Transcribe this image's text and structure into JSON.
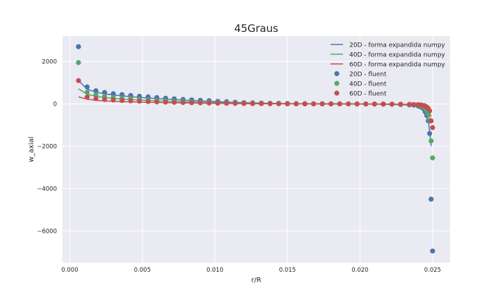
{
  "chart_data": {
    "type": "scatter",
    "title": "45Graus",
    "xlabel": "r/R",
    "ylabel": "w_axial",
    "xlim": [
      -0.0005,
      0.0262
    ],
    "ylim": [
      -7500,
      3200
    ],
    "xticks": [
      0.0,
      0.005,
      0.01,
      0.015,
      0.02,
      0.025
    ],
    "xtick_labels": [
      "0.000",
      "0.005",
      "0.010",
      "0.015",
      "0.020",
      "0.025"
    ],
    "yticks": [
      -6000,
      -4000,
      -2000,
      0,
      2000
    ],
    "ytick_labels": [
      "−6000",
      "−4000",
      "−2000",
      "0",
      "2000"
    ],
    "grid": true,
    "legend_position": "top-right",
    "colors": {
      "blue": "#4c72b0",
      "green": "#55a868",
      "red": "#c44e52",
      "background": "#eaeaf2"
    },
    "line_series": [
      {
        "name": "20D - forma expandida numpy",
        "color": "#4c72b0",
        "x": [
          0.0006,
          0.0012,
          0.0018,
          0.0024,
          0.003,
          0.0036,
          0.0042,
          0.0048,
          0.0054,
          0.006,
          0.0066,
          0.0072,
          0.0078,
          0.0084,
          0.009,
          0.0096,
          0.0102,
          0.0108,
          0.0114,
          0.012,
          0.0126,
          0.0132,
          0.0138,
          0.0144,
          0.015,
          0.0156,
          0.0162,
          0.0168,
          0.0174,
          0.018,
          0.0186,
          0.0192,
          0.0198,
          0.0204,
          0.021,
          0.0216,
          0.0222,
          0.0228,
          0.0234,
          0.024,
          0.0243,
          0.0245,
          0.0247,
          0.0248,
          0.0249
        ],
        "y": [
          1100,
          700,
          550,
          480,
          420,
          380,
          340,
          310,
          280,
          250,
          225,
          200,
          180,
          160,
          140,
          120,
          100,
          85,
          70,
          55,
          45,
          35,
          28,
          20,
          15,
          10,
          8,
          5,
          3,
          2,
          0,
          -2,
          -5,
          -8,
          -12,
          -18,
          -28,
          -40,
          -60,
          -110,
          -200,
          -400,
          -800,
          -1300,
          -2000
        ]
      },
      {
        "name": "40D - forma expandida numpy",
        "color": "#55a868",
        "x": [
          0.0006,
          0.0012,
          0.0018,
          0.0024,
          0.003,
          0.0036,
          0.0042,
          0.0048,
          0.0054,
          0.006,
          0.0066,
          0.0072,
          0.0078,
          0.0084,
          0.009,
          0.0096,
          0.0102,
          0.0108,
          0.0114,
          0.012,
          0.0126,
          0.0132,
          0.0138,
          0.0144,
          0.015,
          0.0156,
          0.0162,
          0.0168,
          0.0174,
          0.018,
          0.0186,
          0.0192,
          0.0198,
          0.0204,
          0.021,
          0.0216,
          0.0222,
          0.0228,
          0.0234,
          0.024,
          0.0243,
          0.0245,
          0.0247,
          0.0248,
          0.0249
        ],
        "y": [
          720,
          450,
          360,
          300,
          260,
          230,
          200,
          180,
          160,
          140,
          125,
          110,
          95,
          85,
          75,
          65,
          55,
          45,
          38,
          30,
          25,
          18,
          14,
          10,
          8,
          5,
          4,
          3,
          2,
          1,
          0,
          -1,
          -3,
          -5,
          -8,
          -12,
          -18,
          -26,
          -40,
          -70,
          -120,
          -230,
          -450,
          -650,
          -900
        ]
      },
      {
        "name": "60D - forma expandida numpy",
        "color": "#c44e52",
        "x": [
          0.0006,
          0.0012,
          0.0018,
          0.0024,
          0.003,
          0.0036,
          0.0042,
          0.0048,
          0.0054,
          0.006,
          0.0066,
          0.0072,
          0.0078,
          0.0084,
          0.009,
          0.0096,
          0.0102,
          0.0108,
          0.0114,
          0.012,
          0.0126,
          0.0132,
          0.0138,
          0.0144,
          0.015,
          0.0156,
          0.0162,
          0.0168,
          0.0174,
          0.018,
          0.0186,
          0.0192,
          0.0198,
          0.0204,
          0.021,
          0.0216,
          0.0222,
          0.0228,
          0.0234,
          0.024,
          0.0243,
          0.0245,
          0.0247,
          0.0248,
          0.0249
        ],
        "y": [
          330,
          220,
          170,
          140,
          120,
          105,
          95,
          85,
          75,
          65,
          58,
          50,
          44,
          38,
          33,
          28,
          23,
          19,
          15,
          12,
          10,
          7,
          5,
          4,
          3,
          2,
          1,
          1,
          0,
          0,
          0,
          -1,
          -2,
          -3,
          -5,
          -8,
          -12,
          -18,
          -28,
          -50,
          -80,
          -150,
          -280,
          -420,
          -600
        ]
      }
    ],
    "scatter_series": [
      {
        "name": "20D - fluent",
        "color": "#4c72b0",
        "x": [
          0.0006,
          0.0012,
          0.0018,
          0.0024,
          0.003,
          0.0036,
          0.0042,
          0.0048,
          0.0054,
          0.006,
          0.0066,
          0.0072,
          0.0078,
          0.0084,
          0.009,
          0.0096,
          0.0102,
          0.0108,
          0.0114,
          0.012,
          0.0126,
          0.0132,
          0.0138,
          0.0144,
          0.015,
          0.0156,
          0.0162,
          0.0168,
          0.0174,
          0.018,
          0.0186,
          0.0192,
          0.0198,
          0.0204,
          0.021,
          0.0216,
          0.0222,
          0.0228,
          0.0234,
          0.0237,
          0.024,
          0.0242,
          0.0244,
          0.0245,
          0.0246,
          0.0247,
          0.0248,
          0.0249,
          0.025
        ],
        "y": [
          2700,
          800,
          620,
          540,
          480,
          440,
          400,
          360,
          330,
          300,
          270,
          240,
          210,
          190,
          170,
          150,
          120,
          100,
          80,
          60,
          50,
          40,
          30,
          25,
          18,
          14,
          10,
          7,
          5,
          3,
          2,
          0,
          -3,
          -6,
          -10,
          -14,
          -20,
          -30,
          -45,
          -60,
          -100,
          -150,
          -250,
          -380,
          -550,
          -800,
          -1400,
          -4500,
          -6950
        ]
      },
      {
        "name": "40D - fluent",
        "color": "#55a868",
        "x": [
          0.0006,
          0.0012,
          0.0018,
          0.0024,
          0.003,
          0.0036,
          0.0042,
          0.0048,
          0.0054,
          0.006,
          0.0066,
          0.0072,
          0.0078,
          0.0084,
          0.009,
          0.0096,
          0.0102,
          0.0108,
          0.0114,
          0.012,
          0.0126,
          0.0132,
          0.0138,
          0.0144,
          0.015,
          0.0156,
          0.0162,
          0.0168,
          0.0174,
          0.018,
          0.0186,
          0.0192,
          0.0198,
          0.0204,
          0.021,
          0.0216,
          0.0222,
          0.0228,
          0.0234,
          0.0237,
          0.024,
          0.0242,
          0.0244,
          0.0245,
          0.0246,
          0.0247,
          0.0248,
          0.0249,
          0.025
        ],
        "y": [
          1950,
          550,
          430,
          360,
          310,
          280,
          250,
          220,
          195,
          170,
          150,
          130,
          115,
          100,
          85,
          75,
          65,
          55,
          45,
          35,
          28,
          22,
          17,
          12,
          9,
          6,
          4,
          3,
          2,
          1,
          0,
          -1,
          -2,
          -4,
          -7,
          -10,
          -15,
          -22,
          -32,
          -42,
          -60,
          -90,
          -150,
          -220,
          -330,
          -500,
          -800,
          -1750,
          -2550
        ]
      },
      {
        "name": "60D - fluent",
        "color": "#c44e52",
        "x": [
          0.0006,
          0.0012,
          0.0018,
          0.0024,
          0.003,
          0.0036,
          0.0042,
          0.0048,
          0.0054,
          0.006,
          0.0066,
          0.0072,
          0.0078,
          0.0084,
          0.009,
          0.0096,
          0.0102,
          0.0108,
          0.0114,
          0.012,
          0.0126,
          0.0132,
          0.0138,
          0.0144,
          0.015,
          0.0156,
          0.0162,
          0.0168,
          0.0174,
          0.018,
          0.0186,
          0.0192,
          0.0198,
          0.0204,
          0.021,
          0.0216,
          0.0222,
          0.0228,
          0.0234,
          0.0237,
          0.024,
          0.0242,
          0.0244,
          0.0245,
          0.0246,
          0.0247,
          0.0248,
          0.0249,
          0.025
        ],
        "y": [
          1100,
          320,
          250,
          210,
          180,
          160,
          140,
          125,
          110,
          95,
          85,
          75,
          65,
          55,
          48,
          40,
          34,
          28,
          22,
          17,
          13,
          10,
          8,
          6,
          4,
          3,
          2,
          1,
          1,
          0,
          0,
          -1,
          -2,
          -3,
          -5,
          -7,
          -10,
          -14,
          -20,
          -26,
          -35,
          -50,
          -80,
          -110,
          -150,
          -220,
          -330,
          -800,
          -1120
        ]
      }
    ]
  }
}
